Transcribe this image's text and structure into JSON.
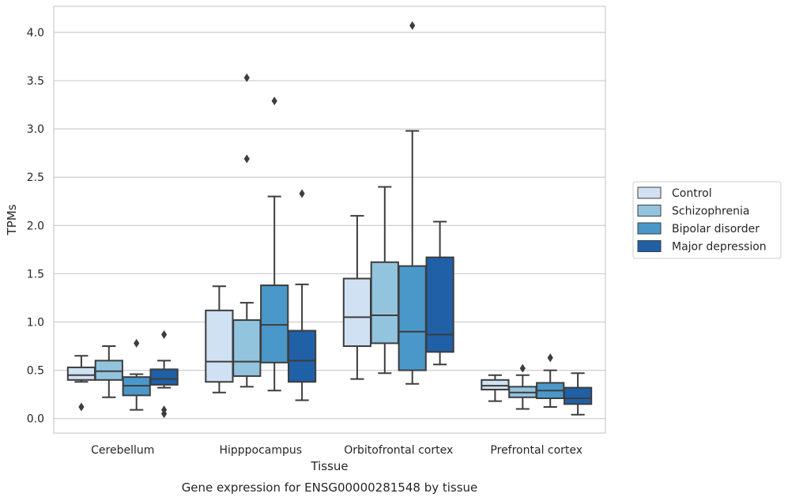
{
  "chart_data": {
    "type": "box",
    "caption": "Gene expression for ENSG00000281548 by tissue",
    "xlabel": "Tissue",
    "ylabel": "TPMs",
    "ylim": [
      -0.15,
      4.27
    ],
    "yticks": [
      "0.0",
      "0.5",
      "1.0",
      "1.5",
      "2.0",
      "2.5",
      "3.0",
      "3.5",
      "4.0"
    ],
    "ytick_values": [
      0.0,
      0.5,
      1.0,
      1.5,
      2.0,
      2.5,
      3.0,
      3.5,
      4.0
    ],
    "grid": "horizontal",
    "legend_position": "right",
    "categories": [
      "Cerebellum",
      "Hipppocampus",
      "Orbitofrontal cortex",
      "Prefrontal cortex"
    ],
    "series": [
      {
        "name": "Control",
        "color": "#cfe1f2",
        "boxes": [
          {
            "whislo": 0.38,
            "q1": 0.4,
            "med": 0.45,
            "q3": 0.53,
            "whishi": 0.65,
            "fliers": [
              0.12
            ]
          },
          {
            "whislo": 0.27,
            "q1": 0.38,
            "med": 0.59,
            "q3": 1.12,
            "whishi": 1.37,
            "fliers": []
          },
          {
            "whislo": 0.41,
            "q1": 0.75,
            "med": 1.05,
            "q3": 1.45,
            "whishi": 2.1,
            "fliers": []
          },
          {
            "whislo": 0.18,
            "q1": 0.3,
            "med": 0.34,
            "q3": 0.4,
            "whishi": 0.45,
            "fliers": []
          }
        ]
      },
      {
        "name": "Schizophrenia",
        "color": "#93c4de",
        "boxes": [
          {
            "whislo": 0.22,
            "q1": 0.4,
            "med": 0.49,
            "q3": 0.6,
            "whishi": 0.75,
            "fliers": []
          },
          {
            "whislo": 0.33,
            "q1": 0.44,
            "med": 0.59,
            "q3": 1.02,
            "whishi": 1.2,
            "fliers": [
              2.69,
              3.53
            ]
          },
          {
            "whislo": 0.47,
            "q1": 0.78,
            "med": 1.07,
            "q3": 1.62,
            "whishi": 2.4,
            "fliers": []
          },
          {
            "whislo": 0.1,
            "q1": 0.22,
            "med": 0.27,
            "q3": 0.33,
            "whishi": 0.45,
            "fliers": [
              0.52
            ]
          }
        ]
      },
      {
        "name": "Bipolar disorder",
        "color": "#4a98c9",
        "boxes": [
          {
            "whislo": 0.09,
            "q1": 0.24,
            "med": 0.34,
            "q3": 0.43,
            "whishi": 0.46,
            "fliers": [
              0.78
            ]
          },
          {
            "whislo": 0.29,
            "q1": 0.58,
            "med": 0.97,
            "q3": 1.38,
            "whishi": 2.3,
            "fliers": [
              3.29
            ]
          },
          {
            "whislo": 0.36,
            "q1": 0.5,
            "med": 0.9,
            "q3": 1.58,
            "whishi": 2.98,
            "fliers": [
              4.07
            ]
          },
          {
            "whislo": 0.12,
            "q1": 0.21,
            "med": 0.29,
            "q3": 0.37,
            "whishi": 0.5,
            "fliers": [
              0.63
            ]
          }
        ]
      },
      {
        "name": "Major depression",
        "color": "#2060a7",
        "boxes": [
          {
            "whislo": 0.32,
            "q1": 0.35,
            "med": 0.41,
            "q3": 0.51,
            "whishi": 0.6,
            "fliers": [
              0.05,
              0.09,
              0.87
            ]
          },
          {
            "whislo": 0.19,
            "q1": 0.38,
            "med": 0.6,
            "q3": 0.91,
            "whishi": 1.39,
            "fliers": [
              2.33
            ]
          },
          {
            "whislo": 0.56,
            "q1": 0.69,
            "med": 0.87,
            "q3": 1.67,
            "whishi": 2.04,
            "fliers": []
          },
          {
            "whislo": 0.04,
            "q1": 0.15,
            "med": 0.21,
            "q3": 0.32,
            "whishi": 0.47,
            "fliers": []
          }
        ]
      }
    ]
  }
}
